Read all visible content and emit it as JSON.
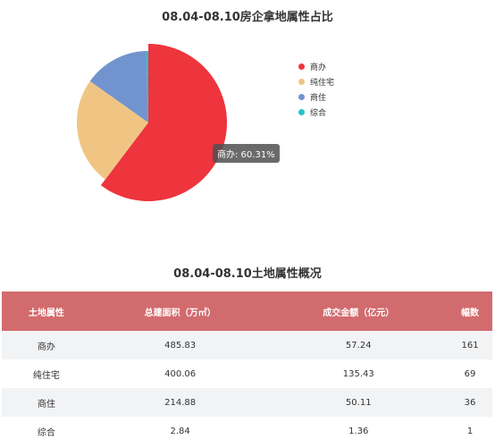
{
  "pie_title": "08.04-08.10房企拿地属性占比",
  "table_title": "08.04-08.10土地属性概况",
  "tooltip_text": "商办: 60.31%",
  "chart_data": [
    {
      "type": "pie",
      "title": "08.04-08.10房企拿地属性占比",
      "legend_position": "right",
      "slices": [
        {
          "label": "商办",
          "value": 60.31,
          "color": "#ee343d"
        },
        {
          "label": "纯住宅",
          "value": 24.5,
          "color": "#f0c584"
        },
        {
          "label": "商住",
          "value": 14.7,
          "color": "#7194cf"
        },
        {
          "label": "综合",
          "value": 0.49,
          "color": "#28c1c9"
        }
      ]
    },
    {
      "type": "table",
      "title": "08.04-08.10土地属性概况",
      "columns": [
        "土地属性",
        "总建面积（万㎡）",
        "成交金额（亿元）",
        "幅数"
      ],
      "rows": [
        [
          "商办",
          "485.83",
          "57.24",
          "161"
        ],
        [
          "纯住宅",
          "400.06",
          "135.43",
          "69"
        ],
        [
          "商住",
          "214.88",
          "50.11",
          "36"
        ],
        [
          "综合",
          "2.84",
          "1.36",
          "1"
        ]
      ]
    }
  ]
}
